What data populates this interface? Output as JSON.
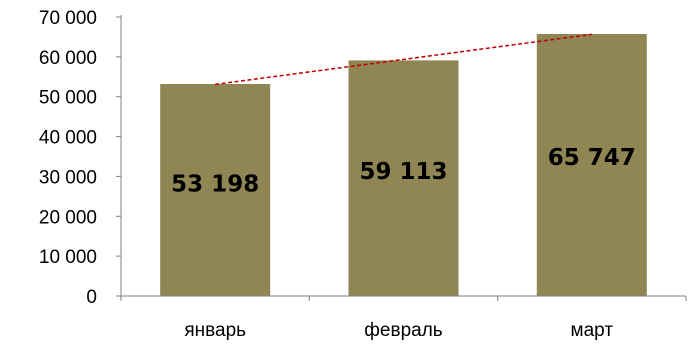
{
  "chart_data": {
    "type": "bar",
    "categories": [
      "январь",
      "февраль",
      "март"
    ],
    "values": [
      53198,
      59113,
      65747
    ],
    "value_labels": [
      "53 198",
      "59 113",
      "65 747"
    ],
    "y_ticks": [
      "0",
      "10 000",
      "20 000",
      "30 000",
      "40 000",
      "50 000",
      "60 000",
      "70 000"
    ],
    "ylim": [
      0,
      70000
    ],
    "title": "",
    "xlabel": "",
    "ylabel": "",
    "grid": false,
    "legend": "none",
    "trendline": "linear",
    "colors": {
      "bar": "#908654",
      "trendline": "#c00000",
      "axis": "#808080"
    }
  }
}
